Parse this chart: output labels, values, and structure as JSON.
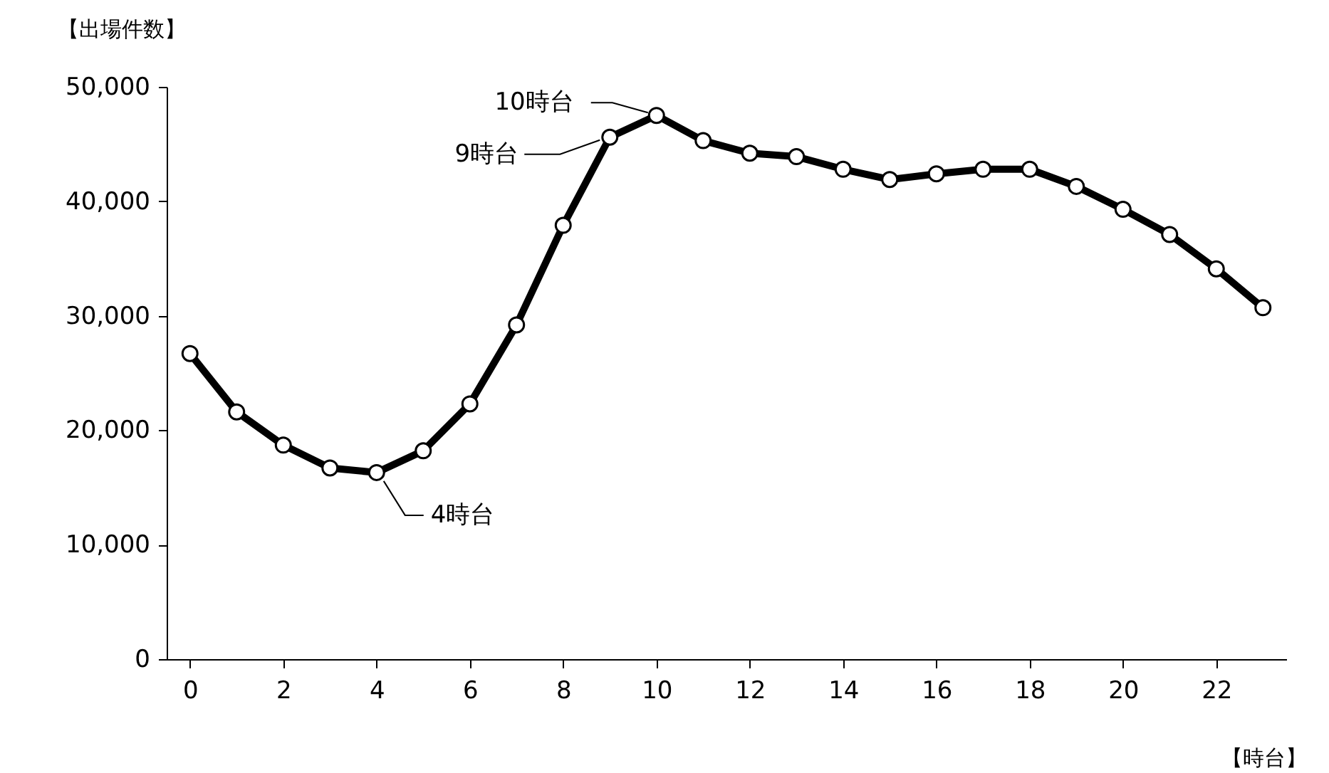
{
  "chart_data": {
    "type": "line",
    "xlabel": "【時台】",
    "ylabel": "【出場件数】",
    "x": [
      0,
      1,
      2,
      3,
      4,
      5,
      6,
      7,
      8,
      9,
      10,
      11,
      12,
      13,
      14,
      15,
      16,
      17,
      18,
      19,
      20,
      21,
      22,
      23
    ],
    "series": [
      {
        "color": "#000000",
        "values": [
          26700,
          21600,
          18700,
          16700,
          16300,
          18200,
          22300,
          29200,
          37900,
          45600,
          47500,
          45300,
          44200,
          43900,
          42800,
          41900,
          42400,
          42800,
          42800,
          41300,
          39300,
          37100,
          34100,
          30700
        ]
      }
    ],
    "xlim": [
      -0.5,
      23.5
    ],
    "xticks": [
      0,
      2,
      4,
      6,
      8,
      10,
      12,
      14,
      16,
      18,
      20,
      22
    ],
    "ylim": [
      0,
      50000
    ],
    "yticks": [
      0,
      {
        "value": 10000,
        "label": "10,000"
      },
      {
        "value": 20000,
        "label": "20,000"
      },
      {
        "value": 30000,
        "label": "30,000"
      },
      {
        "value": 40000,
        "label": "40,000"
      },
      {
        "value": 50000,
        "label": "50,000"
      }
    ],
    "grid": false,
    "legend": false,
    "marker": "circle",
    "line_style": "solid",
    "annotations": [
      {
        "text": "4時台",
        "x": 4,
        "y": 16300
      },
      {
        "text": "9時台",
        "x": 9,
        "y": 45600
      },
      {
        "text": "10時台",
        "x": 10,
        "y": 47500
      }
    ]
  }
}
